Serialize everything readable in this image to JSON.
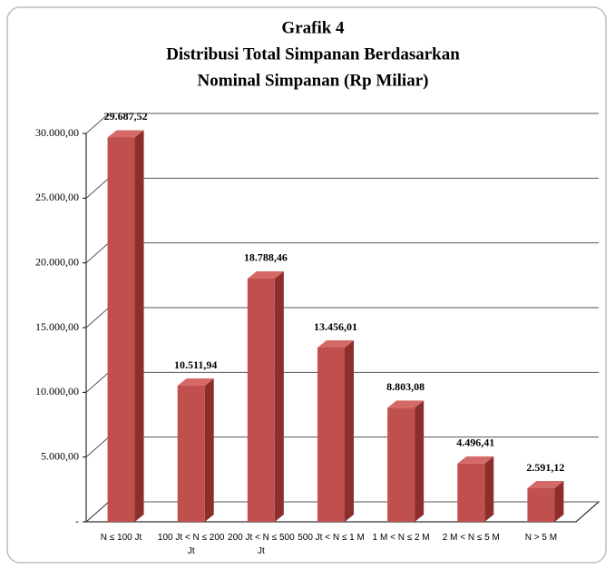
{
  "chart_data": {
    "type": "bar3d",
    "title": [
      "Grafik 4",
      "Distribusi Total Simpanan Berdasarkan",
      "Nominal Simpanan (Rp Miliar)"
    ],
    "categories": [
      "N ≤ 100 Jt",
      "100 Jt < N ≤ 200 Jt",
      "200 Jt < N ≤ 500 Jt",
      "500 Jt < N ≤ 1 M",
      "1 M < N ≤ 2 M",
      "2 M < N ≤ 5 M",
      "N > 5 M"
    ],
    "values": [
      29687.52,
      10511.94,
      18788.46,
      13456.01,
      8803.08,
      4496.41,
      2591.12
    ],
    "value_labels": [
      "29.687,52",
      "10.511,94",
      "18.788,46",
      "13.456,01",
      "8.803,08",
      "4.496,41",
      "2.591,12"
    ],
    "color": "#c0504d",
    "ylim": [
      0,
      30000
    ],
    "yticks": [
      {
        "value": 0,
        "label": "-"
      },
      {
        "value": 5000,
        "label": "5.000,00"
      },
      {
        "value": 10000,
        "label": "10.000,00"
      },
      {
        "value": 15000,
        "label": "15.000,00"
      },
      {
        "value": 20000,
        "label": "20.000,00"
      },
      {
        "value": 25000,
        "label": "25.000,00"
      },
      {
        "value": 30000,
        "label": "30.000,00"
      }
    ],
    "grid": true
  }
}
